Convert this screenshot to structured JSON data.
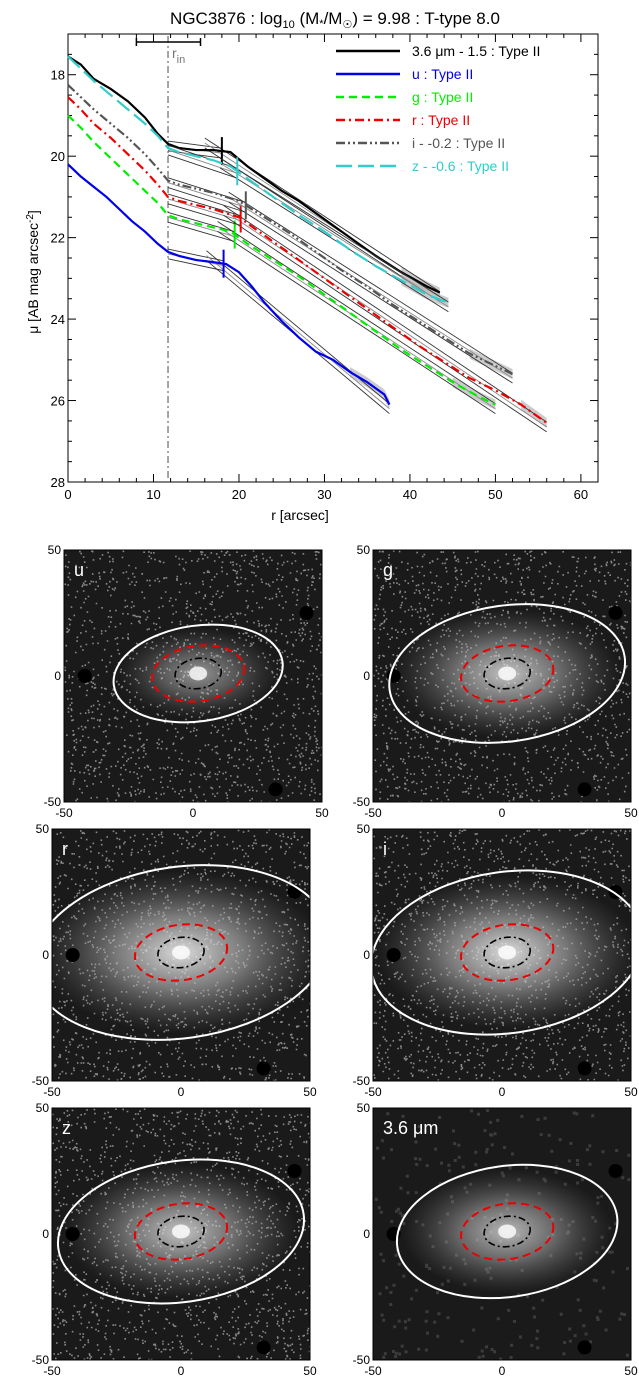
{
  "figure": {
    "title_parts": {
      "prefix": "NGC3876 : log",
      "sub": "10",
      "mid": " (M",
      "star": "*",
      "slash": "/M",
      "sun": "☉",
      "suffix": ") = 9.98 : T-type 8.0"
    }
  },
  "profile": {
    "ylabel_main": "μ [AB mag arcsec",
    "ylabel_sup": "-2",
    "ylabel_end": "]",
    "xlabel": "r [arcsec]",
    "rin_label": "r",
    "rin_sub": "in"
  },
  "chart_data": [
    {
      "type": "line",
      "title": "NGC3876 : log10 (M*/M☉) = 9.98 : T-type 8.0",
      "xlabel": "r [arcsec]",
      "ylabel": "μ [AB mag arcsec-2]",
      "xlim": [
        0,
        62
      ],
      "ylim": [
        28,
        17
      ],
      "y_inverted": true,
      "xticks": [
        "0",
        "10",
        "20",
        "30",
        "40",
        "50",
        "60"
      ],
      "yticks": [
        "18",
        "20",
        "22",
        "24",
        "26",
        "28"
      ],
      "grid": false,
      "legend_position": "top-right",
      "r_in": 11.7,
      "series": [
        {
          "name": "3.6 μm - 1.5 : Type II",
          "color": "#000000",
          "dash": "solid",
          "x": [
            0,
            1.5,
            3,
            5,
            7,
            9,
            10.5,
            11.7,
            13,
            15,
            17,
            19,
            21,
            23,
            25,
            27,
            30,
            33,
            36,
            39,
            42,
            43.5
          ],
          "y": [
            17.55,
            17.75,
            18.1,
            18.35,
            18.65,
            19.05,
            19.45,
            19.7,
            19.8,
            19.85,
            19.85,
            19.9,
            20.25,
            20.55,
            20.85,
            21.1,
            21.55,
            22.0,
            22.45,
            22.85,
            23.2,
            23.35
          ],
          "break_r": 18.0
        },
        {
          "name": "u : Type II",
          "color": "#0000ee",
          "dash": "solid",
          "x": [
            0,
            1.5,
            3,
            4.5,
            6,
            7.5,
            9,
            10.5,
            11.7,
            13,
            15,
            17,
            18.5,
            20,
            21.5,
            23,
            25,
            27,
            29,
            31,
            33,
            35,
            37,
            37.6
          ],
          "y": [
            20.2,
            20.5,
            20.75,
            21.0,
            21.3,
            21.6,
            21.85,
            22.15,
            22.35,
            22.45,
            22.55,
            22.6,
            22.65,
            22.85,
            23.2,
            23.6,
            24.05,
            24.45,
            24.8,
            25.0,
            25.3,
            25.55,
            25.85,
            26.1
          ],
          "break_r": 18.2
        },
        {
          "name": "g : Type II",
          "color": "#00ee00",
          "dash": "dashed",
          "x": [
            0,
            1.5,
            3,
            5,
            7,
            9,
            10.5,
            11.7,
            13,
            15,
            17,
            19,
            21,
            24,
            27,
            30,
            33,
            36,
            39,
            42,
            45,
            48,
            50
          ],
          "y": [
            19.0,
            19.3,
            19.65,
            20.05,
            20.45,
            20.85,
            21.15,
            21.45,
            21.55,
            21.65,
            21.75,
            21.85,
            22.15,
            22.55,
            22.95,
            23.4,
            23.85,
            24.3,
            24.75,
            25.15,
            25.55,
            25.9,
            26.1
          ],
          "break_r": 19.5
        },
        {
          "name": "r : Type II",
          "color": "#ee0000",
          "dash": "dashdot",
          "x": [
            0,
            1.5,
            3,
            5,
            7,
            9,
            10.5,
            11.7,
            13,
            15,
            17,
            20,
            23,
            26,
            29,
            32,
            35,
            38,
            41,
            44,
            47,
            50,
            53,
            56
          ],
          "y": [
            18.55,
            18.85,
            19.2,
            19.55,
            19.95,
            20.35,
            20.7,
            21.0,
            21.1,
            21.2,
            21.3,
            21.5,
            21.95,
            22.4,
            22.85,
            23.3,
            23.75,
            24.2,
            24.65,
            25.05,
            25.45,
            25.75,
            26.1,
            26.55
          ],
          "break_r": 20.2
        },
        {
          "name": "i - -0.2 : Type II",
          "color": "#555555",
          "dash": "dashdotdot",
          "x": [
            0,
            1.5,
            3,
            5,
            7,
            9,
            10.5,
            11.7,
            13,
            15,
            17,
            20,
            23,
            26,
            29,
            32,
            35,
            38,
            41,
            44,
            47,
            50,
            52
          ],
          "y": [
            18.25,
            18.55,
            18.85,
            19.2,
            19.55,
            19.95,
            20.3,
            20.6,
            20.7,
            20.8,
            20.9,
            21.1,
            21.5,
            21.9,
            22.35,
            22.8,
            23.2,
            23.65,
            24.05,
            24.45,
            24.85,
            25.15,
            25.35
          ],
          "break_r": 20.8
        },
        {
          "name": "z - -0.6 : Type II",
          "color": "#33cccc",
          "dash": "longdash",
          "x": [
            0,
            1.5,
            3,
            5,
            7,
            9,
            10.5,
            11.7,
            13,
            15,
            17,
            19,
            21,
            24,
            27,
            30,
            33,
            36,
            39,
            42,
            44.5
          ],
          "y": [
            17.55,
            17.85,
            18.15,
            18.5,
            18.85,
            19.2,
            19.5,
            19.8,
            19.9,
            20.0,
            20.1,
            20.25,
            20.55,
            21.0,
            21.45,
            21.85,
            22.3,
            22.7,
            23.05,
            23.4,
            23.6
          ],
          "break_r": 19.8
        }
      ]
    }
  ],
  "images": [
    {
      "label": "u",
      "outer_a": 33,
      "outer_b": 19,
      "mid_a": 18,
      "mid_b": 11,
      "inner_a": 9,
      "inner_b": 6,
      "cx": 2,
      "cy": 1,
      "glow": 0.55
    },
    {
      "label": "g",
      "outer_a": 46,
      "outer_b": 27,
      "mid_a": 18,
      "mid_b": 11,
      "inner_a": 9,
      "inner_b": 6,
      "cx": 2,
      "cy": 1,
      "glow": 0.75
    },
    {
      "label": "r",
      "outer_a": 58,
      "outer_b": 34,
      "mid_a": 18,
      "mid_b": 11,
      "inner_a": 9,
      "inner_b": 6,
      "cx": 0,
      "cy": 1,
      "glow": 0.85
    },
    {
      "label": "i",
      "outer_a": 53,
      "outer_b": 32,
      "mid_a": 18,
      "mid_b": 11,
      "inner_a": 9,
      "inner_b": 6,
      "cx": 2,
      "cy": 1,
      "glow": 0.85
    },
    {
      "label": "z",
      "outer_a": 48,
      "outer_b": 28,
      "mid_a": 18,
      "mid_b": 11,
      "inner_a": 9,
      "inner_b": 6,
      "cx": 0,
      "cy": 1,
      "glow": 0.75
    },
    {
      "label": "3.6 μm",
      "outer_a": 43,
      "outer_b": 26,
      "mid_a": 18,
      "mid_b": 11,
      "inner_a": 9,
      "inner_b": 6,
      "cx": 2,
      "cy": 1,
      "glow": 0.7
    }
  ],
  "image_axes": {
    "xticks": [
      "-50",
      "0",
      "50"
    ],
    "yticks": [
      "50",
      "0",
      "-50"
    ]
  }
}
